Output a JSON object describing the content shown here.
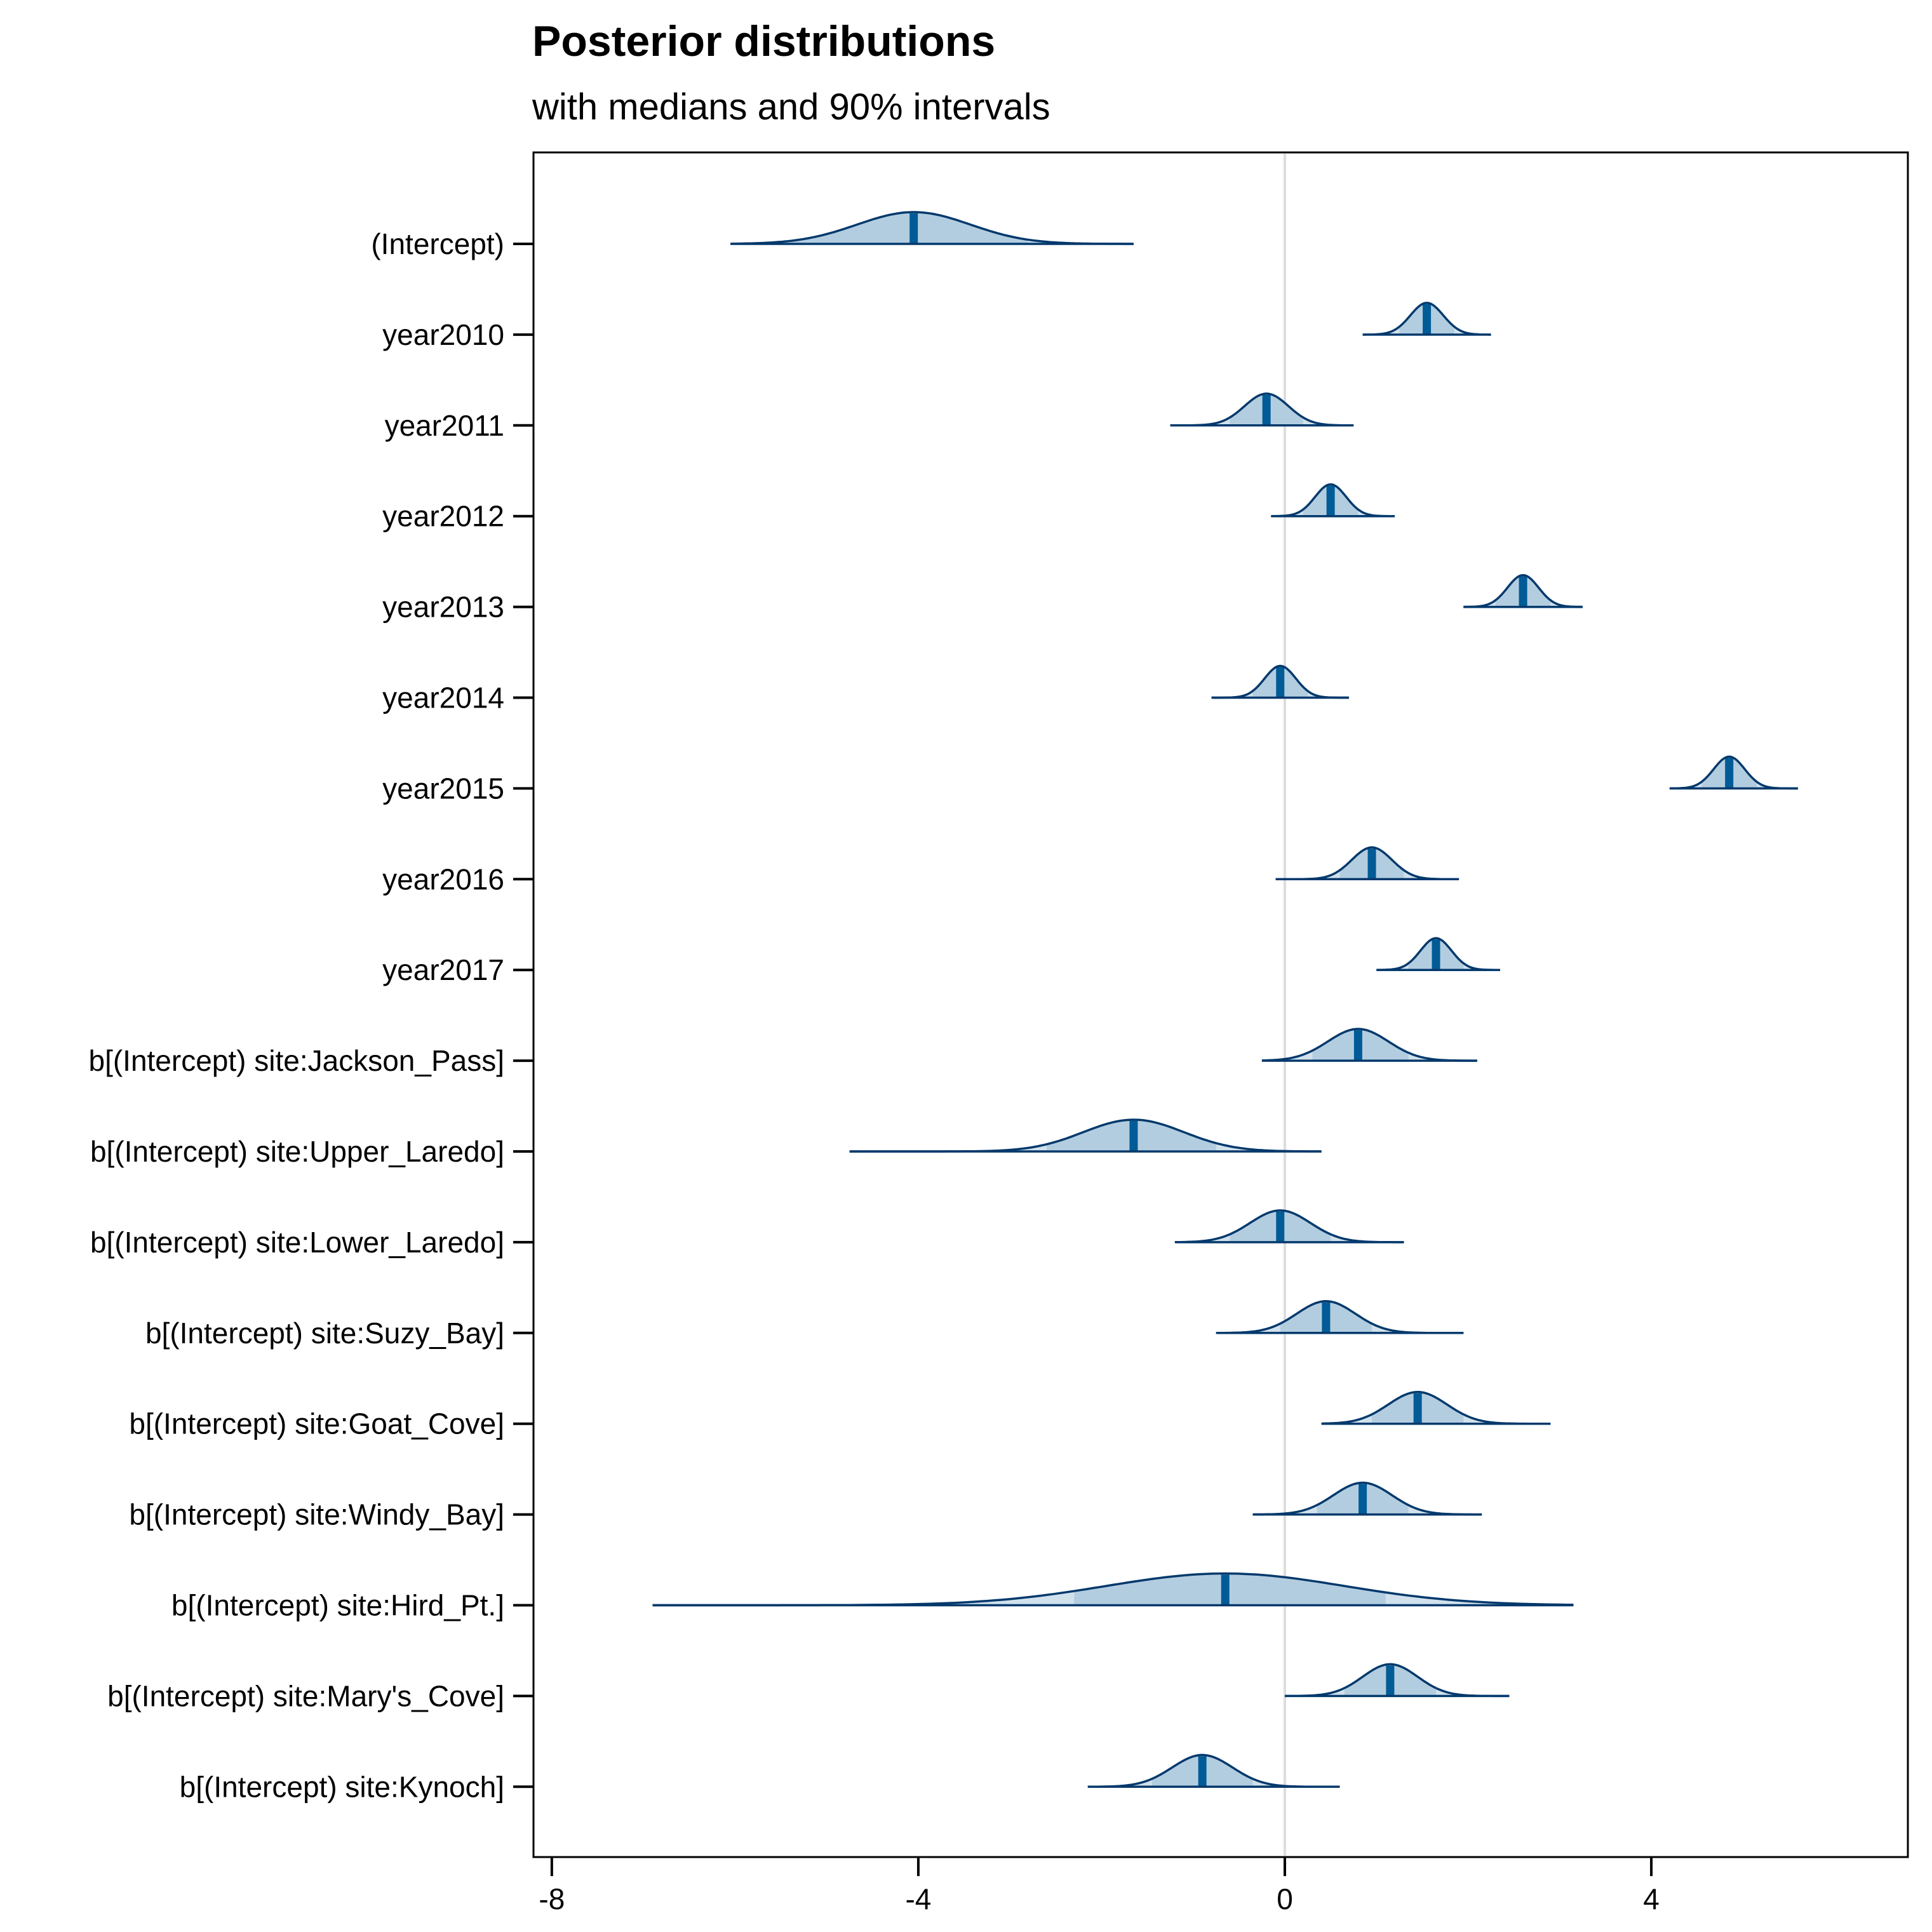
{
  "title": "Posterior distributions",
  "subtitle": "with medians and 90% intervals",
  "chart_data": {
    "type": "area",
    "chart_subtype": "ridgeline-density",
    "xlim": [
      -8.2,
      6.8
    ],
    "x_ticks": [
      -8,
      -4,
      0,
      4
    ],
    "x_tick_labels": [
      "-8",
      "-4",
      "0",
      "4"
    ],
    "reference_line_x": 0,
    "grid": false,
    "legend": "none",
    "colors": {
      "fill": "#d1e1ec",
      "outline": "#03396c",
      "interval": "#b3cde0",
      "median": "#005b96",
      "reference": "#dddddd",
      "axis": "#000000"
    },
    "parameters": [
      {
        "label": "(Intercept)",
        "median": -4.05,
        "ci90": [
          -5.4,
          -2.8
        ],
        "min": -6.05,
        "max": -1.65,
        "sd": 0.62
      },
      {
        "label": "year2010",
        "median": 1.55,
        "ci90": [
          1.25,
          1.85
        ],
        "min": 0.85,
        "max": 2.25,
        "sd": 0.18
      },
      {
        "label": "year2011",
        "median": -0.2,
        "ci90": [
          -0.6,
          0.2
        ],
        "min": -1.25,
        "max": 0.75,
        "sd": 0.24
      },
      {
        "label": "year2012",
        "median": 0.5,
        "ci90": [
          0.2,
          0.8
        ],
        "min": -0.15,
        "max": 1.2,
        "sd": 0.17
      },
      {
        "label": "year2013",
        "median": 2.6,
        "ci90": [
          2.3,
          2.9
        ],
        "min": 1.95,
        "max": 3.25,
        "sd": 0.17
      },
      {
        "label": "year2014",
        "median": -0.05,
        "ci90": [
          -0.35,
          0.25
        ],
        "min": -0.8,
        "max": 0.7,
        "sd": 0.17
      },
      {
        "label": "year2015",
        "median": 4.85,
        "ci90": [
          4.55,
          5.15
        ],
        "min": 4.2,
        "max": 5.6,
        "sd": 0.17
      },
      {
        "label": "year2016",
        "median": 0.95,
        "ci90": [
          0.6,
          1.3
        ],
        "min": -0.1,
        "max": 1.9,
        "sd": 0.22
      },
      {
        "label": "year2017",
        "median": 1.65,
        "ci90": [
          1.35,
          1.95
        ],
        "min": 1.0,
        "max": 2.35,
        "sd": 0.17
      },
      {
        "label": "b[(Intercept) site:Jackson_Pass]",
        "median": 0.8,
        "ci90": [
          0.3,
          1.35
        ],
        "min": -0.25,
        "max": 2.1,
        "sd": 0.33
      },
      {
        "label": "b[(Intercept) site:Upper_Laredo]",
        "median": -1.65,
        "ci90": [
          -2.6,
          -0.75
        ],
        "min": -4.75,
        "max": 0.4,
        "sd": 0.55
      },
      {
        "label": "b[(Intercept) site:Lower_Laredo]",
        "median": -0.05,
        "ci90": [
          -0.6,
          0.5
        ],
        "min": -1.2,
        "max": 1.3,
        "sd": 0.33
      },
      {
        "label": "b[(Intercept) site:Suzy_Bay]",
        "median": 0.45,
        "ci90": [
          -0.05,
          0.95
        ],
        "min": -0.75,
        "max": 1.95,
        "sd": 0.32
      },
      {
        "label": "b[(Intercept) site:Goat_Cove]",
        "median": 1.45,
        "ci90": [
          0.95,
          1.95
        ],
        "min": 0.4,
        "max": 2.9,
        "sd": 0.32
      },
      {
        "label": "b[(Intercept) site:Windy_Bay]",
        "median": 0.85,
        "ci90": [
          0.35,
          1.35
        ],
        "min": -0.35,
        "max": 2.15,
        "sd": 0.32
      },
      {
        "label": "b[(Intercept) site:Hird_Pt.]",
        "median": -0.65,
        "ci90": [
          -2.3,
          1.1
        ],
        "min": -6.9,
        "max": 3.15,
        "sd": 1.3
      },
      {
        "label": "b[(Intercept) site:Mary's_Cove]",
        "median": 1.15,
        "ci90": [
          0.65,
          1.65
        ],
        "min": 0.0,
        "max": 2.45,
        "sd": 0.3
      },
      {
        "label": "b[(Intercept) site:Kynoch]",
        "median": -0.9,
        "ci90": [
          -1.45,
          -0.35
        ],
        "min": -2.15,
        "max": 0.6,
        "sd": 0.33
      }
    ]
  }
}
